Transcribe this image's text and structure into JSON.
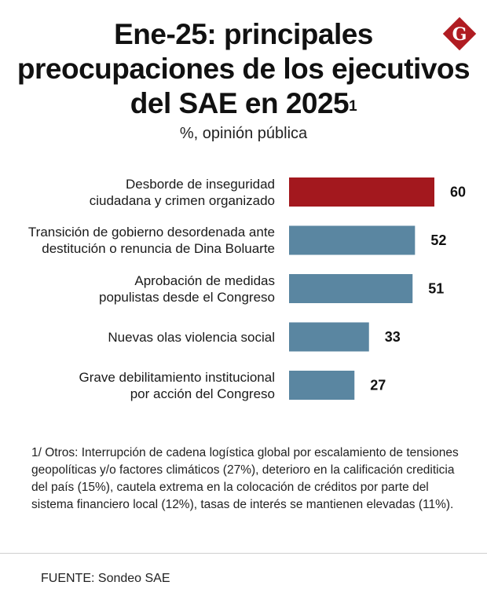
{
  "header": {
    "title_line1": "Ene-25: principales",
    "title_line2": "preocupaciones de los ejecutivos",
    "title_line3": "del SAE en 2025",
    "title_sup": "1",
    "subtitle": "%, opinión pública",
    "logo_letter": "G"
  },
  "colors": {
    "highlight": "#A3181E",
    "default": "#5A86A1",
    "logo": "#B01C22"
  },
  "chart_data": {
    "type": "bar",
    "orientation": "horizontal",
    "title": "Ene-25: principales preocupaciones de los ejecutivos del SAE en 2025",
    "subtitle": "%, opinión pública",
    "xlim": [
      0,
      60
    ],
    "categories": [
      [
        "Desborde de inseguridad",
        "ciudadana y crimen organizado"
      ],
      [
        "Transición de gobierno desordenada ante",
        "destitución o renuncia de Dina Boluarte"
      ],
      [
        "Aprobación de medidas",
        "populistas desde el Congreso"
      ],
      [
        "Nuevas olas violencia social"
      ],
      [
        "Grave debilitamiento institucional",
        "por acción del Congreso"
      ]
    ],
    "values": [
      60,
      52,
      51,
      33,
      27
    ],
    "highlight_index": 0
  },
  "footnote": "1/ Otros: Interrupción de cadena logística global por escalamiento de tensiones geopolíticas y/o factores climáticos (27%), deterioro en la calificación crediticia del país (15%), cautela extrema en la colocación de créditos por parte del sistema financiero local (12%), tasas de interés se mantienen elevadas (11%).",
  "source": "FUENTE: Sondeo SAE"
}
